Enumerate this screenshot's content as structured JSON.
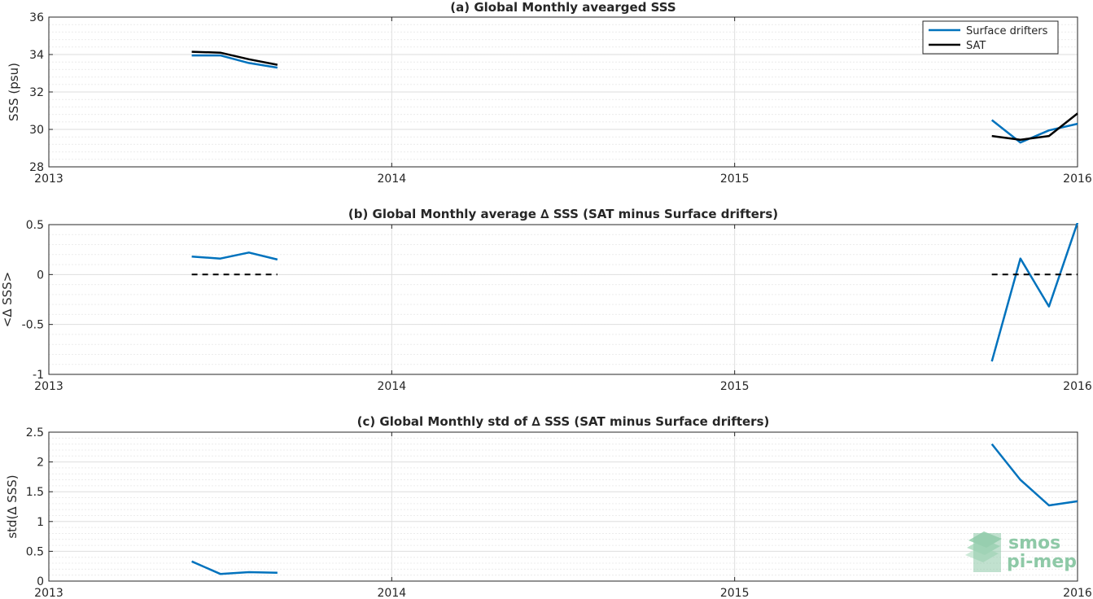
{
  "chart_data": [
    {
      "type": "line",
      "title": "(a) Global Monthly avearged SSS",
      "xlabel": "",
      "ylabel": "SSS (psu)",
      "xlim": [
        "2013-01",
        "2016-01"
      ],
      "ylim": [
        28,
        36
      ],
      "xticks": [
        "2013",
        "2014",
        "2015",
        "2016"
      ],
      "yticks": [
        "28",
        "30",
        "32",
        "34",
        "36"
      ],
      "grid": true,
      "legend": "top-right",
      "series": [
        {
          "name": "Surface drifters",
          "color": "#0072bd",
          "style": "solid",
          "x": [
            "2013-06",
            "2013-07",
            "2013-08",
            "2013-09",
            null,
            "2015-10",
            "2015-11",
            "2015-12",
            "2016-01"
          ],
          "values": [
            33.95,
            33.95,
            33.55,
            33.3,
            null,
            30.5,
            29.3,
            29.95,
            30.3
          ]
        },
        {
          "name": "SAT",
          "color": "#000000",
          "style": "solid",
          "x": [
            "2013-06",
            "2013-07",
            "2013-08",
            "2013-09",
            null,
            "2015-10",
            "2015-11",
            "2015-12",
            "2016-01"
          ],
          "values": [
            34.15,
            34.1,
            33.75,
            33.45,
            null,
            29.65,
            29.45,
            29.65,
            30.85
          ]
        }
      ]
    },
    {
      "type": "line",
      "title": "(b) Global Monthly average ∆ SSS (SAT minus Surface drifters)",
      "xlabel": "",
      "ylabel": "<∆ SSS>",
      "xlim": [
        "2013-01",
        "2016-01"
      ],
      "ylim": [
        -1,
        0.5
      ],
      "xticks": [
        "2013",
        "2014",
        "2015",
        "2016"
      ],
      "yticks": [
        "-1",
        "-0.5",
        "0",
        "0.5"
      ],
      "grid": true,
      "series": [
        {
          "color": "#0072bd",
          "style": "solid",
          "x": [
            "2013-06",
            "2013-07",
            "2013-08",
            "2013-09",
            null,
            "2015-10",
            "2015-11",
            "2015-12",
            "2016-01"
          ],
          "values": [
            0.18,
            0.16,
            0.22,
            0.15,
            null,
            -0.87,
            0.16,
            -0.32,
            0.52
          ]
        },
        {
          "color": "#000000",
          "style": "dashed",
          "x": [
            "2013-06",
            "2013-09",
            null,
            "2015-10",
            "2016-01"
          ],
          "values": [
            0,
            0,
            null,
            0,
            0
          ]
        }
      ]
    },
    {
      "type": "line",
      "title": "(c) Global Monthly std of ∆ SSS (SAT minus Surface drifters)",
      "xlabel": "",
      "ylabel": "std(∆ SSS)",
      "xlim": [
        "2013-01",
        "2016-01"
      ],
      "ylim": [
        0,
        2.5
      ],
      "xticks": [
        "2013",
        "2014",
        "2015",
        "2016"
      ],
      "yticks": [
        "0",
        "0.5",
        "1",
        "1.5",
        "2",
        "2.5"
      ],
      "grid": true,
      "series": [
        {
          "color": "#0072bd",
          "style": "solid",
          "x": [
            "2013-06",
            "2013-07",
            "2013-08",
            "2013-09",
            null,
            "2015-10",
            "2015-11",
            "2015-12",
            "2016-01"
          ],
          "values": [
            0.33,
            0.12,
            0.15,
            0.14,
            null,
            2.3,
            1.7,
            1.27,
            1.34
          ]
        }
      ]
    }
  ],
  "logo": {
    "line1": "smos",
    "line2": "pi-mep",
    "color": "#8ec9a7"
  }
}
